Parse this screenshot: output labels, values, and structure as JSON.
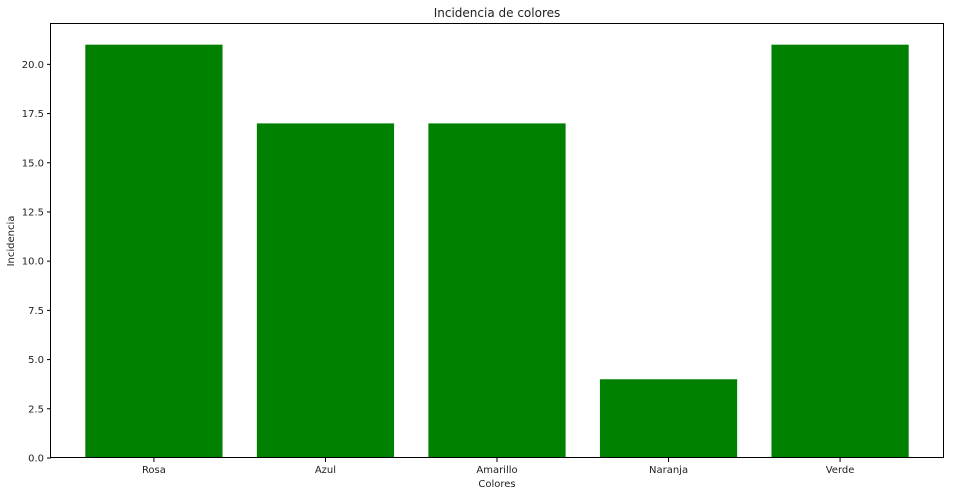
{
  "chart_data": {
    "type": "bar",
    "title": "Incidencia de colores",
    "xlabel": "Colores",
    "ylabel": "Incidencia",
    "categories": [
      "Rosa",
      "Azul",
      "Amarillo",
      "Naranja",
      "Verde"
    ],
    "values": [
      21,
      17,
      17,
      4,
      21
    ],
    "ylim": [
      0,
      22.05
    ],
    "yticks": [
      0.0,
      2.5,
      5.0,
      7.5,
      10.0,
      12.5,
      15.0,
      17.5,
      20.0
    ],
    "ytick_labels": [
      "0.0",
      "2.5",
      "5.0",
      "7.5",
      "10.0",
      "12.5",
      "15.0",
      "17.5",
      "20.0"
    ],
    "bar_color": "#008000",
    "grid": false,
    "legend": "none"
  }
}
